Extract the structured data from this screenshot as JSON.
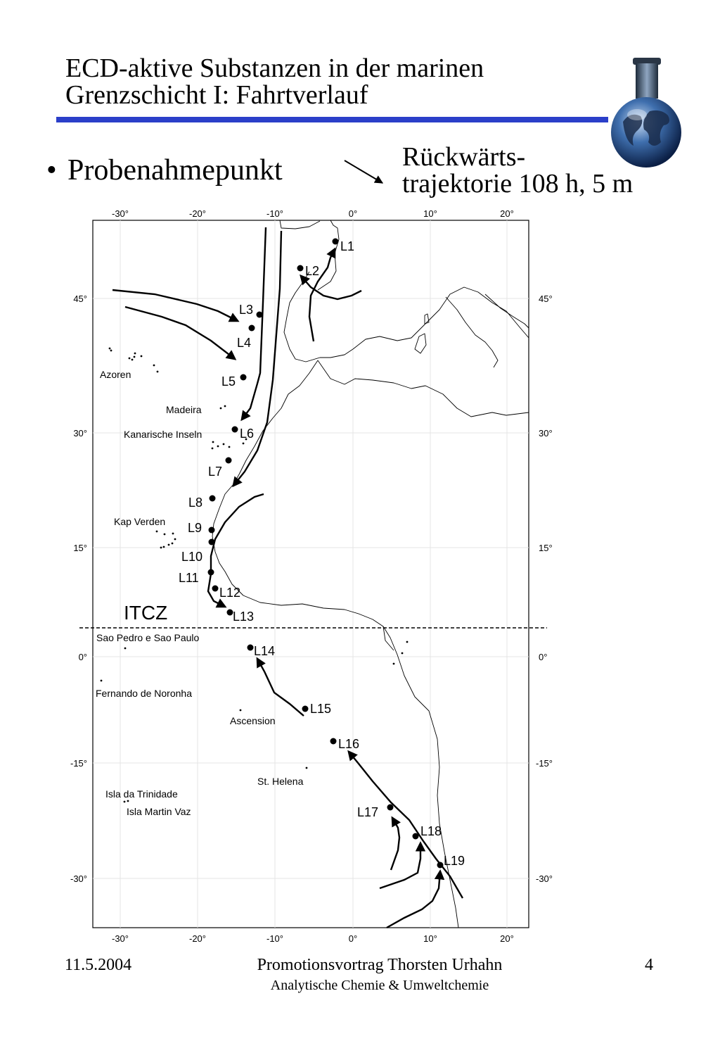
{
  "slide": {
    "title_line1": "ECD-aktive Substanzen in der marinen",
    "title_line2": "Grenzschicht I: Fahrtverlauf",
    "bullet": "•",
    "bullet_text": "Probenahmepunkt",
    "trajectory_line1": "Rückwärts-",
    "trajectory_line2": "trajektorie 108 h, 5 m",
    "accent_color": "#2b3fc9"
  },
  "map": {
    "x_ticks": [
      "-30°",
      "-20°",
      "-10°",
      "0°",
      "10°",
      "20°"
    ],
    "y_ticks": [
      "45°",
      "30°",
      "15°",
      "0°",
      "-15°",
      "-30°"
    ],
    "itcz_label": "ITCZ",
    "sample_points": [
      "L1",
      "L2",
      "L3",
      "L4",
      "L5",
      "L6",
      "L7",
      "L8",
      "L9",
      "L10",
      "L11",
      "L12",
      "L13",
      "L14",
      "L15",
      "L16",
      "L17",
      "L18",
      "L19"
    ],
    "islands": [
      "Azoren",
      "Madeira",
      "Kanarische Inseln",
      "Kap Verden",
      "Sao Pedro e Sao Paulo",
      "Fernando de Noronha",
      "Ascension",
      "St. Helena",
      "Isla da Trinidade",
      "Isla Martin Vaz"
    ]
  },
  "footer": {
    "date": "11.5.2004",
    "title": "Promotionsvortrag Thorsten Urhahn",
    "subtitle": "Analytische Chemie & Umweltchemie",
    "page": "4"
  }
}
